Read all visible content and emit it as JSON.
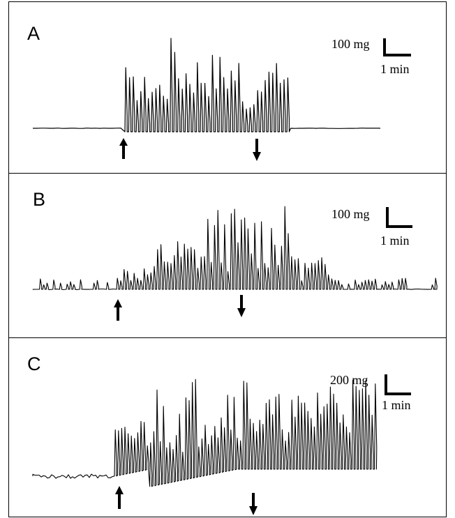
{
  "figure": {
    "panels": [
      {
        "id": "A",
        "label": "A",
        "scale_y": "100 mg",
        "scale_x": "1 min"
      },
      {
        "id": "B",
        "label": "B",
        "scale_y": "100 mg",
        "scale_x": "1 min"
      },
      {
        "id": "C",
        "label": "C",
        "scale_y": "200 mg",
        "scale_x": "1 min"
      }
    ],
    "arrow_icons": [
      "arrow-up-icon",
      "arrow-down-icon"
    ],
    "colors": {
      "trace": "#000000",
      "background": "#ffffff",
      "border": "#000000"
    }
  }
}
